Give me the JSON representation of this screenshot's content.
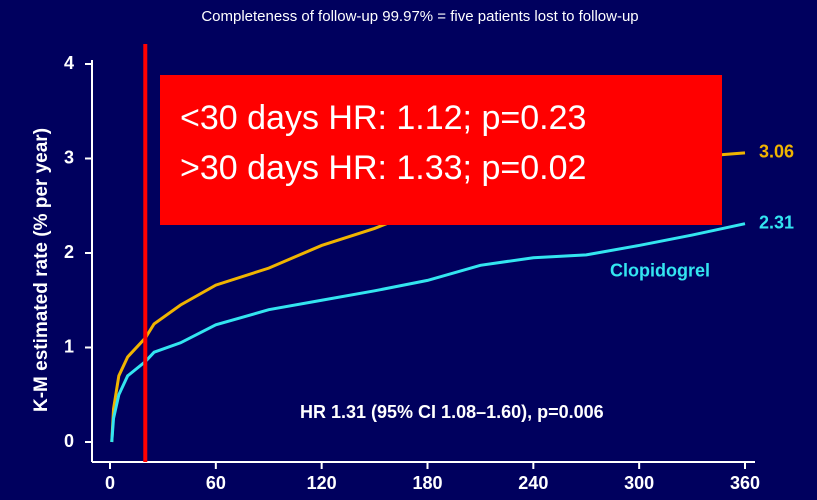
{
  "chart_data": {
    "type": "line",
    "title": "Completeness of follow-up 99.97% = five patients lost to follow-up",
    "y_label": "K-M estimated rate (% per year)",
    "xlim": [
      0,
      360
    ],
    "xticks": [
      0,
      60,
      120,
      180,
      240,
      300,
      360
    ],
    "ylim": [
      0,
      4
    ],
    "yticks": [
      0,
      1,
      2,
      3,
      4
    ],
    "vline": {
      "x": 20,
      "color": "#ff0000"
    },
    "series": [
      {
        "color": "#f0b400",
        "x": [
          1,
          2,
          5,
          10,
          20,
          25,
          40,
          60,
          90,
          120,
          150,
          180,
          200,
          240,
          300,
          340,
          360
        ],
        "values": [
          0,
          0.35,
          0.7,
          0.9,
          1.1,
          1.25,
          1.45,
          1.66,
          1.84,
          2.08,
          2.26,
          2.48,
          2.56,
          2.75,
          2.95,
          3.03,
          3.06
        ]
      },
      {
        "name": "Clopidogrel",
        "color": "#33e5f0",
        "x": [
          1,
          2,
          5,
          10,
          20,
          25,
          40,
          60,
          90,
          120,
          150,
          180,
          210,
          240,
          270,
          300,
          330,
          360
        ],
        "values": [
          0,
          0.25,
          0.5,
          0.7,
          0.85,
          0.95,
          1.05,
          1.24,
          1.4,
          1.5,
          1.6,
          1.71,
          1.87,
          1.95,
          1.98,
          2.08,
          2.19,
          2.31
        ]
      }
    ],
    "annotations": {
      "box_lines": [
        "<30 days HR: 1.12; p=0.23",
        ">30 days HR: 1.33; p=0.02"
      ],
      "box_color": "#ff0000",
      "hr": "HR 1.31 (95% CI 1.08–1.60), p=0.006"
    }
  }
}
